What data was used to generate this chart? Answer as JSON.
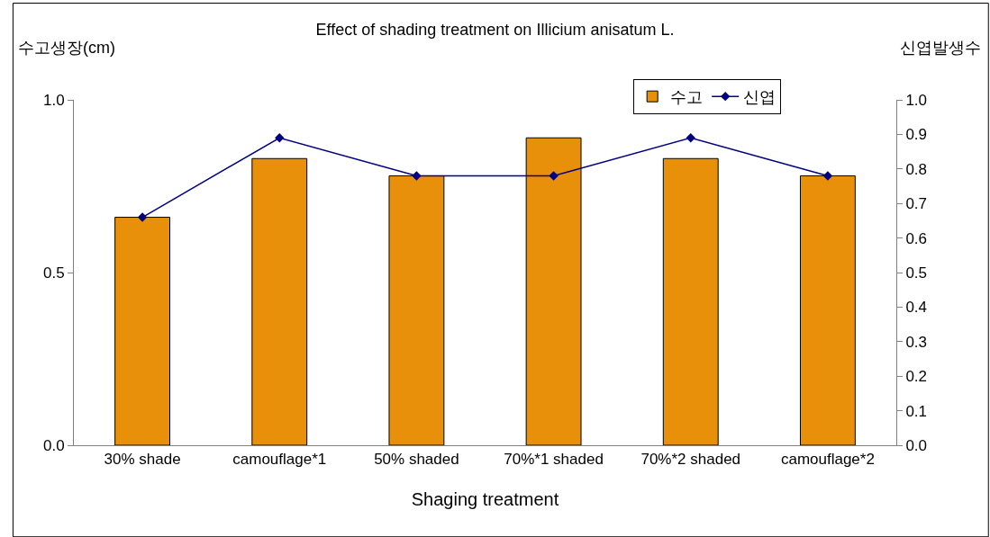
{
  "chart_data": {
    "type": "bar",
    "title": "Effect of shading treatment on Illicium anisatum L.",
    "xlabel": "Shaging treatment",
    "ylabel": "수고생장(cm)",
    "y2label": "신엽발생수",
    "categories": [
      "30% shade",
      "camouflage*1",
      "50% shaded",
      "70%*1 shaded",
      "70%*2 shaded",
      "camouflage*2"
    ],
    "series": [
      {
        "name": "수고",
        "color": "#e8900a",
        "values": [
          0.66,
          0.83,
          0.78,
          0.89,
          0.83,
          0.78
        ]
      },
      {
        "name": "신엽",
        "type": "line",
        "axis": "y2",
        "color": "#000080",
        "marker": "diamond",
        "values": [
          0.66,
          0.89,
          0.78,
          0.78,
          0.89,
          0.78
        ]
      }
    ],
    "ylim": [
      0,
      1
    ],
    "yticks": [
      {
        "value": 0,
        "label": "0.0"
      },
      {
        "value": 0.5,
        "label": "0.5"
      },
      {
        "value": 1,
        "label": "1.0"
      }
    ],
    "y2lim": [
      0,
      1
    ],
    "y2ticks": [
      {
        "value": 0,
        "label": "0.0"
      },
      {
        "value": 0.1,
        "label": "0.1"
      },
      {
        "value": 0.2,
        "label": "0.2"
      },
      {
        "value": 0.3,
        "label": "0.3"
      },
      {
        "value": 0.4,
        "label": "0.4"
      },
      {
        "value": 0.5,
        "label": "0.5"
      },
      {
        "value": 0.6,
        "label": "0.6"
      },
      {
        "value": 0.7,
        "label": "0.7"
      },
      {
        "value": 0.8,
        "label": "0.8"
      },
      {
        "value": 0.9,
        "label": "0.9"
      },
      {
        "value": 1,
        "label": "1.0"
      }
    ],
    "legend": "top right"
  }
}
